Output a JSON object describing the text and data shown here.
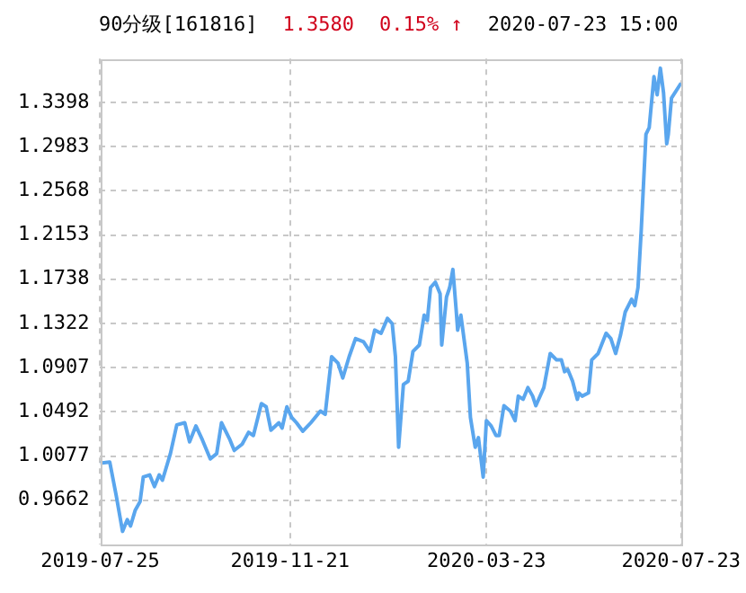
{
  "chart_data": {
    "type": "line",
    "title": "90分级[161816]",
    "annotations": [
      "1.3580",
      "0.15% ↑",
      "2020-07-23 15:00"
    ],
    "x": [
      "2019-07-25",
      "2019-07-31",
      "2019-08-04",
      "2019-08-08",
      "2019-08-11",
      "2019-08-13",
      "2019-08-16",
      "2019-08-19",
      "2019-08-21",
      "2019-08-25",
      "2019-08-28",
      "2019-08-31",
      "2019-09-02",
      "2019-09-07",
      "2019-09-11",
      "2019-09-16",
      "2019-09-19",
      "2019-09-23",
      "2019-09-27",
      "2019-10-02",
      "2019-10-06",
      "2019-10-09",
      "2019-10-14",
      "2019-10-17",
      "2019-10-22",
      "2019-10-26",
      "2019-10-29",
      "2019-11-03",
      "2019-11-06",
      "2019-11-09",
      "2019-11-14",
      "2019-11-16",
      "2019-11-19",
      "2019-11-22",
      "2019-11-25",
      "2019-11-29",
      "2019-12-04",
      "2019-12-10",
      "2019-12-13",
      "2019-12-17",
      "2019-12-21",
      "2019-12-24",
      "2019-12-28",
      "2020-01-01",
      "2020-01-06",
      "2020-01-10",
      "2020-01-13",
      "2020-01-17",
      "2020-01-21",
      "2020-01-24",
      "2020-01-26",
      "2020-01-28",
      "2020-01-31",
      "2020-02-03",
      "2020-02-06",
      "2020-02-10",
      "2020-02-13",
      "2020-02-15",
      "2020-02-17",
      "2020-02-20",
      "2020-02-23",
      "2020-02-24",
      "2020-02-27",
      "2020-02-29",
      "2020-03-02",
      "2020-03-04",
      "2020-03-05",
      "2020-03-07",
      "2020-03-11",
      "2020-03-13",
      "2020-03-16",
      "2020-03-18",
      "2020-03-21",
      "2020-03-23",
      "2020-03-26",
      "2020-03-29",
      "2020-03-31",
      "2020-04-03",
      "2020-04-07",
      "2020-04-10",
      "2020-04-12",
      "2020-04-15",
      "2020-04-18",
      "2020-04-21",
      "2020-04-23",
      "2020-04-28",
      "2020-05-02",
      "2020-05-06",
      "2020-05-09",
      "2020-05-11",
      "2020-05-13",
      "2020-05-16",
      "2020-05-19",
      "2020-05-20",
      "2020-05-22",
      "2020-05-26",
      "2020-05-28",
      "2020-06-01",
      "2020-06-06",
      "2020-06-09",
      "2020-06-12",
      "2020-06-15",
      "2020-06-18",
      "2020-06-22",
      "2020-06-24",
      "2020-06-26",
      "2020-06-28",
      "2020-07-01",
      "2020-07-03",
      "2020-07-06",
      "2020-07-08",
      "2020-07-10",
      "2020-07-12",
      "2020-07-14",
      "2020-07-15",
      "2020-07-17",
      "2020-07-23"
    ],
    "series": [
      {
        "color": "#5aa6ee",
        "values": [
          1.001,
          1.002,
          0.971,
          0.937,
          0.948,
          0.942,
          0.957,
          0.965,
          0.988,
          0.99,
          0.979,
          0.99,
          0.985,
          1.01,
          1.037,
          1.039,
          1.021,
          1.036,
          1.023,
          1.005,
          1.01,
          1.039,
          1.024,
          1.013,
          1.019,
          1.03,
          1.027,
          1.057,
          1.054,
          1.032,
          1.039,
          1.034,
          1.054,
          1.044,
          1.039,
          1.031,
          1.039,
          1.05,
          1.047,
          1.101,
          1.095,
          1.081,
          1.101,
          1.118,
          1.115,
          1.106,
          1.126,
          1.123,
          1.137,
          1.132,
          1.101,
          1.016,
          1.075,
          1.078,
          1.106,
          1.112,
          1.14,
          1.135,
          1.166,
          1.171,
          1.16,
          1.112,
          1.157,
          1.166,
          1.183,
          1.146,
          1.126,
          1.14,
          1.095,
          1.044,
          1.016,
          1.025,
          0.988,
          1.041,
          1.036,
          1.027,
          1.027,
          1.055,
          1.05,
          1.041,
          1.064,
          1.061,
          1.072,
          1.064,
          1.055,
          1.072,
          1.104,
          1.098,
          1.098,
          1.087,
          1.089,
          1.078,
          1.061,
          1.067,
          1.064,
          1.067,
          1.098,
          1.104,
          1.123,
          1.118,
          1.104,
          1.121,
          1.143,
          1.155,
          1.149,
          1.166,
          1.219,
          1.31,
          1.316,
          1.364,
          1.347,
          1.372,
          1.349,
          1.301,
          1.31,
          1.344,
          1.358
        ]
      }
    ],
    "xlim": [
      "2019-07-25",
      "2020-07-23"
    ],
    "xticks": [
      "2019-07-25",
      "2019-11-21",
      "2020-03-23",
      "2020-07-23"
    ],
    "ylim": [
      0.925,
      1.381
    ],
    "yticks": [
      0.9662,
      1.0077,
      1.0492,
      1.0907,
      1.1322,
      1.1738,
      1.2153,
      1.2568,
      1.2983,
      1.3398
    ],
    "grid": true,
    "legend": false,
    "marker": "none",
    "line_style": "solid"
  }
}
